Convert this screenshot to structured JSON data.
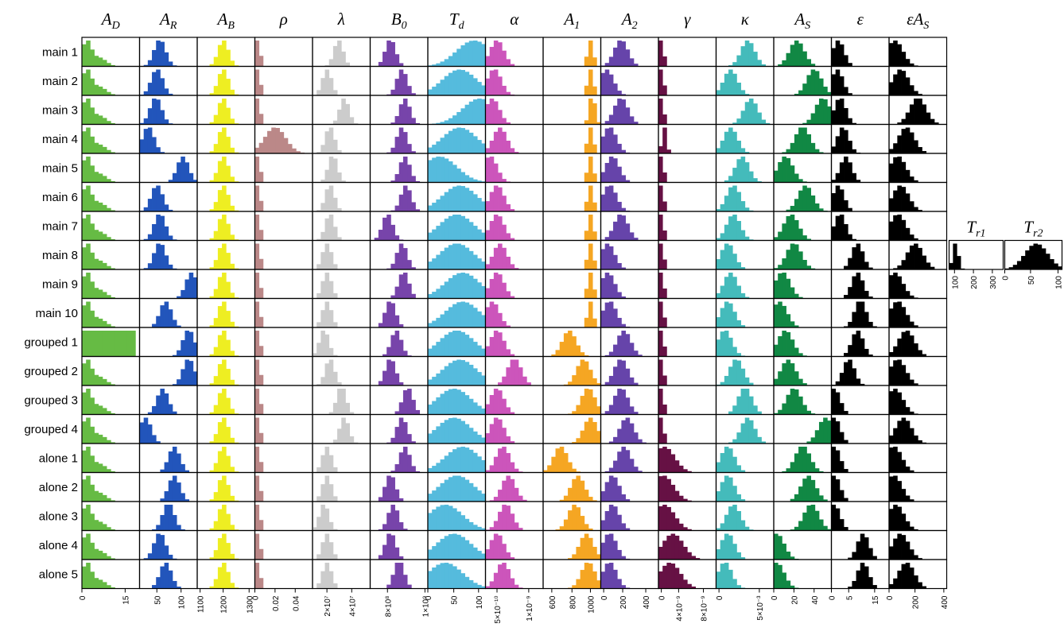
{
  "chart_data": {
    "type": "histogram-matrix",
    "columns": [
      {
        "key": "AD",
        "label": "A_D",
        "color": "#66bb44",
        "ticks": [
          {
            "v": 0,
            "t": "0"
          },
          {
            "v": 0.75,
            "t": "15"
          }
        ]
      },
      {
        "key": "AR",
        "label": "A_R",
        "color": "#2255bb",
        "ticks": [
          {
            "v": 0.3,
            "t": "50"
          },
          {
            "v": 0.72,
            "t": "100"
          }
        ]
      },
      {
        "key": "AB",
        "label": "A_B",
        "color": "#eeee22",
        "ticks": [
          {
            "v": 0.05,
            "t": "1100"
          },
          {
            "v": 0.45,
            "t": "1200"
          },
          {
            "v": 0.9,
            "t": "1300"
          }
        ]
      },
      {
        "key": "rho",
        "label": "ρ",
        "color": "#bb8888",
        "ticks": [
          {
            "v": 0,
            "t": "0"
          },
          {
            "v": 0.35,
            "t": "0.02"
          },
          {
            "v": 0.7,
            "t": "0.04"
          }
        ]
      },
      {
        "key": "lambda",
        "label": "λ",
        "color": "#cccccc",
        "ticks": [
          {
            "v": 0.25,
            "t": "2×10⁷"
          },
          {
            "v": 0.68,
            "t": "4×10⁷"
          }
        ]
      },
      {
        "key": "B0",
        "label": "B_0",
        "color": "#7744aa",
        "ticks": [
          {
            "v": 0.3,
            "t": "8×10⁸"
          },
          {
            "v": 0.95,
            "t": "1×10⁹"
          }
        ]
      },
      {
        "key": "Td",
        "label": "T_d",
        "color": "#55bbdd",
        "ticks": [
          {
            "v": 0,
            "t": "0"
          },
          {
            "v": 0.45,
            "t": "50"
          },
          {
            "v": 0.88,
            "t": "100"
          }
        ]
      },
      {
        "key": "alpha",
        "label": "α",
        "color": "#cc55bb",
        "ticks": [
          {
            "v": 0.2,
            "t": "5×10⁻¹⁰"
          },
          {
            "v": 0.75,
            "t": "1×10⁻⁹"
          }
        ]
      },
      {
        "key": "A1",
        "label": "A_1",
        "color": "#f5a623",
        "ticks": [
          {
            "v": 0.15,
            "t": "600"
          },
          {
            "v": 0.5,
            "t": "800"
          },
          {
            "v": 0.82,
            "t": "1000"
          }
        ]
      },
      {
        "key": "A2",
        "label": "A_2",
        "color": "#6644aa",
        "ticks": [
          {
            "v": 0.05,
            "t": "0"
          },
          {
            "v": 0.38,
            "t": "200"
          },
          {
            "v": 0.78,
            "t": "400"
          }
        ]
      },
      {
        "key": "gamma",
        "label": "γ",
        "color": "#661144",
        "ticks": [
          {
            "v": 0.05,
            "t": "0"
          },
          {
            "v": 0.35,
            "t": "4×10⁻⁹"
          },
          {
            "v": 0.78,
            "t": "8×10⁻⁹"
          }
        ]
      },
      {
        "key": "kappa",
        "label": "κ",
        "color": "#44bbbb",
        "ticks": [
          {
            "v": 0.05,
            "t": "0"
          },
          {
            "v": 0.75,
            "t": "5×10⁻³"
          }
        ]
      },
      {
        "key": "AS",
        "label": "A_S",
        "color": "#118844",
        "ticks": [
          {
            "v": 0,
            "t": "0"
          },
          {
            "v": 0.35,
            "t": "20"
          },
          {
            "v": 0.7,
            "t": "40"
          }
        ]
      },
      {
        "key": "eps",
        "label": "ε",
        "color": "#000000",
        "ticks": [
          {
            "v": 0,
            "t": "0"
          },
          {
            "v": 0.3,
            "t": "5"
          },
          {
            "v": 0.75,
            "t": "15"
          }
        ]
      },
      {
        "key": "epsAS",
        "label": "εA_S",
        "color": "#000000",
        "ticks": [
          {
            "v": 0,
            "t": "0"
          },
          {
            "v": 0.45,
            "t": "200"
          },
          {
            "v": 0.95,
            "t": "400"
          }
        ]
      }
    ],
    "rows": [
      "main 1",
      "main 2",
      "main 3",
      "main 4",
      "main 5",
      "main 6",
      "main 7",
      "main 8",
      "main 9",
      "main 10",
      "grouped 1",
      "grouped 2",
      "grouped 3",
      "grouped 4",
      "alone 1",
      "alone 2",
      "alone 3",
      "alone 4",
      "alone 5"
    ],
    "extra_panels": [
      {
        "key": "Tr1",
        "label": "T_r1",
        "color": "#000000",
        "row": "main 8",
        "ticks": [
          {
            "v": 0.1,
            "t": "100"
          },
          {
            "v": 0.45,
            "t": "200"
          },
          {
            "v": 0.8,
            "t": "300"
          }
        ]
      },
      {
        "key": "Tr2",
        "label": "T_r2",
        "color": "#000000",
        "row": "main 8",
        "ticks": [
          {
            "v": 0,
            "t": "0"
          },
          {
            "v": 0.45,
            "t": "50"
          },
          {
            "v": 0.93,
            "t": "100"
          }
        ]
      }
    ],
    "shape_note": "each cell is a histogram of the posterior sample for that parameter; shapes approximated"
  }
}
